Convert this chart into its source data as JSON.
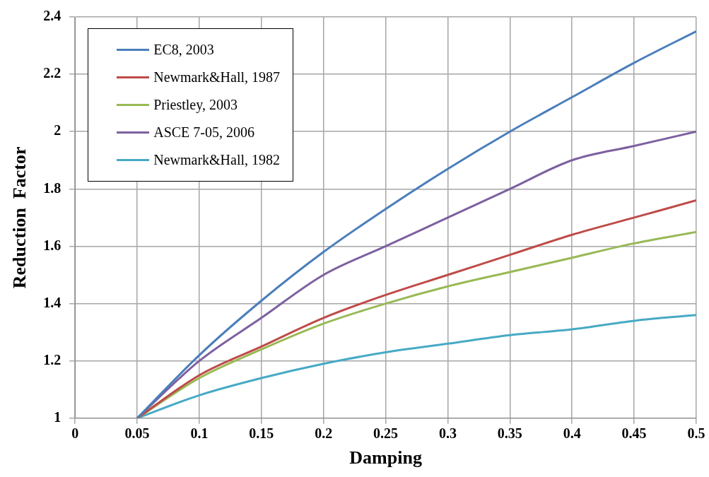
{
  "chart_data": {
    "type": "line",
    "xlabel": "Damping",
    "ylabel": "Reduction  Factor",
    "x": [
      0.05,
      0.1,
      0.15,
      0.2,
      0.25,
      0.3,
      0.35,
      0.4,
      0.45,
      0.5
    ],
    "series": [
      {
        "name": "EC8, 2003",
        "color": "#4a7ebb",
        "values": [
          1,
          1.22,
          1.41,
          1.58,
          1.73,
          1.87,
          2.0,
          2.12,
          2.24,
          2.35
        ]
      },
      {
        "name": "Newmark&Hall, 1987",
        "color": "#be4b48",
        "values": [
          1,
          1.15,
          1.25,
          1.35,
          1.43,
          1.5,
          1.57,
          1.64,
          1.7,
          1.76
        ]
      },
      {
        "name": "Priestley, 2003",
        "color": "#98b954",
        "values": [
          1,
          1.14,
          1.24,
          1.33,
          1.4,
          1.46,
          1.51,
          1.56,
          1.61,
          1.65
        ]
      },
      {
        "name": "ASCE 7-05, 2006",
        "color": "#7d60a0",
        "values": [
          1,
          1.2,
          1.35,
          1.5,
          1.6,
          1.7,
          1.8,
          1.9,
          1.95,
          2.0
        ]
      },
      {
        "name": "Newmark&Hall, 1982",
        "color": "#46aac5",
        "values": [
          1,
          1.08,
          1.14,
          1.19,
          1.23,
          1.26,
          1.29,
          1.31,
          1.34,
          1.36
        ]
      }
    ],
    "xlim": [
      0,
      0.5
    ],
    "xticks": [
      0,
      0.05,
      0.1,
      0.15,
      0.2,
      0.25,
      0.3,
      0.35,
      0.4,
      0.45,
      0.5
    ],
    "ylim": [
      1,
      2.4
    ],
    "yticks": [
      1,
      1.2,
      1.4,
      1.6,
      1.8,
      2,
      2.2,
      2.4
    ],
    "grid": true,
    "legend": "top left",
    "marker": "none",
    "line_style": "solid"
  }
}
